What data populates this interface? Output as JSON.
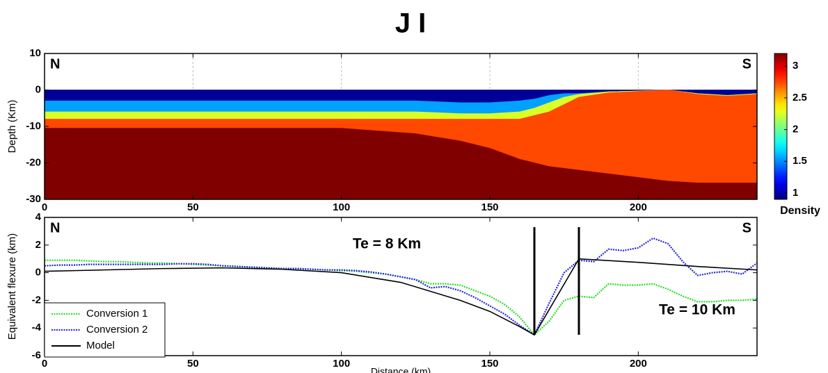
{
  "chart_data": [
    {
      "type": "section",
      "title": "J I",
      "ylabel": "Depth (Km)",
      "corner_labels": [
        "N",
        "S"
      ],
      "xlim": [
        0,
        240
      ],
      "xticks": [
        0,
        50,
        100,
        150,
        200
      ],
      "ylim": [
        -30,
        10
      ],
      "yticks": [
        10,
        0,
        -10,
        -20,
        -30
      ],
      "grid": true,
      "colorbar_label": "Density",
      "clim": [
        0.9,
        3.2
      ],
      "cticks": [
        1,
        1.5,
        2,
        2.5,
        3
      ],
      "x": [
        0,
        50,
        100,
        125,
        140,
        150,
        160,
        165,
        170,
        175,
        180,
        190,
        200,
        210,
        220,
        230,
        240
      ],
      "layers": [
        {
          "density": 0.95,
          "top": [
            0,
            0,
            0,
            0,
            0,
            0,
            0,
            0,
            0,
            0,
            0,
            0,
            0,
            0,
            0,
            0,
            0
          ],
          "bottom": [
            -3,
            -3,
            -3,
            -3,
            -3.5,
            -3.5,
            -3,
            -2.5,
            -1.5,
            -1,
            -1,
            -0.5,
            -0.3,
            0,
            -1,
            -1.5,
            -1
          ]
        },
        {
          "density": 1.55,
          "top": [
            -3,
            -3,
            -3,
            -3,
            -3.5,
            -3.5,
            -3,
            -2.5,
            -1.5,
            -1,
            -1,
            -0.5,
            -0.3,
            0,
            -1,
            -1.5,
            -1
          ],
          "bottom": [
            -6,
            -6,
            -6,
            -6,
            -6.5,
            -6.5,
            -6,
            -5,
            -3.5,
            -2,
            -1.2,
            -0.5,
            -0.3,
            0,
            -1,
            -1.5,
            -1
          ]
        },
        {
          "density": 2.25,
          "top": [
            -6,
            -6,
            -6,
            -6,
            -6.5,
            -6.5,
            -6,
            -5,
            -3.5,
            -2,
            -1.2,
            -0.5,
            -0.3,
            0,
            -1,
            -1.5,
            -1
          ],
          "bottom": [
            -8,
            -8,
            -8,
            -8,
            -8,
            -8,
            -8,
            -7,
            -6,
            -4,
            -2,
            -0.8,
            -0.4,
            0,
            -1.2,
            -1.7,
            -1.2
          ]
        },
        {
          "density": 2.75,
          "top": [
            -8,
            -8,
            -8,
            -8,
            -8,
            -8,
            -8,
            -7,
            -6,
            -4,
            -2,
            -0.8,
            -0.4,
            0,
            -1.2,
            -1.7,
            -1.2
          ],
          "bottom": [
            -10.5,
            -10.5,
            -10.5,
            -12,
            -14,
            -16,
            -19,
            -20,
            -21,
            -21.5,
            -22,
            -23,
            -24,
            -25,
            -25.5,
            -25.5,
            -25.5
          ]
        },
        {
          "density": 3.2,
          "top": [
            -10.5,
            -10.5,
            -10.5,
            -12,
            -14,
            -16,
            -19,
            -20,
            -21,
            -21.5,
            -22,
            -23,
            -24,
            -25,
            -25.5,
            -25.5,
            -25.5
          ],
          "bottom": [
            -30,
            -30,
            -30,
            -30,
            -30,
            -30,
            -30,
            -30,
            -30,
            -30,
            -30,
            -30,
            -30,
            -30,
            -30,
            -30,
            -30
          ]
        }
      ]
    },
    {
      "type": "line",
      "xlabel": "Distance (km)",
      "ylabel": "Equivalent flexure (km)",
      "corner_labels": [
        "N",
        "S"
      ],
      "annotations": [
        "Te = 8 Km",
        "Te = 10 Km"
      ],
      "vlines": [
        165,
        180
      ],
      "xlim": [
        0,
        240
      ],
      "xticks": [
        0,
        50,
        100,
        150,
        200
      ],
      "ylim": [
        -6,
        4
      ],
      "yticks": [
        4,
        2,
        0,
        -2,
        -4,
        -6
      ],
      "legend": "lower left",
      "series": [
        {
          "name": "Conversion 1",
          "color": "#22dd22",
          "style": "dotted",
          "x": [
            0,
            5,
            10,
            15,
            20,
            25,
            30,
            35,
            40,
            45,
            50,
            55,
            60,
            65,
            70,
            75,
            80,
            85,
            90,
            95,
            100,
            105,
            110,
            115,
            120,
            125,
            130,
            135,
            140,
            145,
            150,
            155,
            160,
            165,
            170,
            175,
            180,
            185,
            190,
            195,
            200,
            205,
            210,
            215,
            220,
            225,
            230,
            235,
            240
          ],
          "values": [
            0.9,
            0.9,
            0.9,
            0.85,
            0.8,
            0.8,
            0.75,
            0.7,
            0.7,
            0.65,
            0.6,
            0.55,
            0.5,
            0.45,
            0.4,
            0.35,
            0.3,
            0.3,
            0.25,
            0.2,
            0.15,
            0.1,
            0,
            -0.1,
            -0.3,
            -0.5,
            -0.8,
            -0.8,
            -0.9,
            -1.3,
            -1.7,
            -2.3,
            -3.2,
            -4.5,
            -3.5,
            -2,
            -1.7,
            -1.8,
            -0.8,
            -0.9,
            -0.9,
            -0.8,
            -1.2,
            -1.7,
            -2.1,
            -2.1,
            -2,
            -2,
            -1.9
          ]
        },
        {
          "name": "Conversion 2",
          "color": "#2222dd",
          "style": "dotted",
          "x": [
            0,
            5,
            10,
            15,
            20,
            25,
            30,
            35,
            40,
            45,
            50,
            55,
            60,
            65,
            70,
            75,
            80,
            85,
            90,
            95,
            100,
            105,
            110,
            115,
            120,
            125,
            130,
            135,
            140,
            145,
            150,
            155,
            160,
            165,
            170,
            175,
            180,
            185,
            190,
            195,
            200,
            205,
            210,
            215,
            220,
            225,
            230,
            235,
            240
          ],
          "values": [
            0.5,
            0.55,
            0.55,
            0.6,
            0.6,
            0.6,
            0.6,
            0.6,
            0.6,
            0.65,
            0.65,
            0.6,
            0.5,
            0.45,
            0.4,
            0.35,
            0.3,
            0.3,
            0.25,
            0.2,
            0.2,
            0.15,
            0.05,
            -0.1,
            -0.3,
            -0.5,
            -1.1,
            -1,
            -1.3,
            -1.8,
            -2.4,
            -3,
            -3.8,
            -4.5,
            -2.2,
            0,
            0.9,
            0.8,
            1.7,
            1.6,
            1.8,
            2.5,
            2.1,
            0.8,
            -0.2,
            0,
            0.1,
            -0.1,
            0.7
          ]
        },
        {
          "name": "Model",
          "color": "#000000",
          "style": "solid",
          "x": [
            0,
            20,
            40,
            60,
            80,
            100,
            120,
            140,
            150,
            160,
            165,
            180,
            200,
            220,
            240
          ],
          "values": [
            0.1,
            0.2,
            0.3,
            0.35,
            0.25,
            0,
            -0.7,
            -2,
            -2.8,
            -3.9,
            -4.5,
            1,
            0.75,
            0.45,
            0.2
          ]
        }
      ]
    }
  ]
}
